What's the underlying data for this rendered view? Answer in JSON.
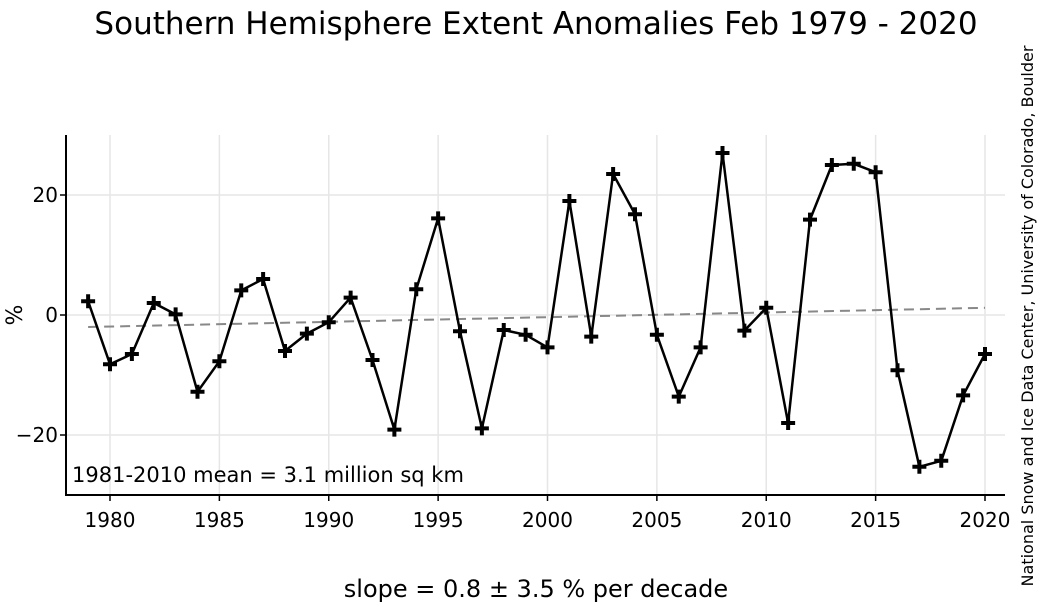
{
  "chart_data": {
    "type": "line",
    "title": "Southern Hemisphere Extent Anomalies Feb 1979 - 2020",
    "xlabel": "slope = 0.8 ± 3.5 % per decade",
    "ylabel": "%",
    "credit": "National Snow and Ice Data Center, University of Colorado, Boulder",
    "annotation": "1981-2010 mean = 3.1 million sq km",
    "xlim": [
      1978,
      2021
    ],
    "ylim": [
      -30,
      30
    ],
    "x_ticks": [
      1980,
      1985,
      1990,
      1995,
      2000,
      2005,
      2010,
      2015,
      2020
    ],
    "x_tick_labels": [
      "1980",
      "1985",
      "1990",
      "1995",
      "2000",
      "2005",
      "2010",
      "2015",
      "2020"
    ],
    "y_ticks": [
      -20,
      0,
      20
    ],
    "y_tick_labels": [
      "−20",
      "0",
      "20"
    ],
    "grid": true,
    "series": [
      {
        "color": "#000000",
        "marker": "plus",
        "x": [
          1979,
          1980,
          1981,
          1982,
          1983,
          1984,
          1985,
          1986,
          1987,
          1988,
          1989,
          1990,
          1991,
          1992,
          1993,
          1994,
          1995,
          1996,
          1997,
          1998,
          1999,
          2000,
          2001,
          2002,
          2003,
          2004,
          2005,
          2006,
          2007,
          2008,
          2009,
          2010,
          2011,
          2012,
          2013,
          2014,
          2015,
          2016,
          2017,
          2018,
          2019,
          2020
        ],
        "y": [
          2.3,
          -8.2,
          -6.5,
          2.0,
          0.1,
          -12.8,
          -7.7,
          4.1,
          6.0,
          -6.0,
          -3.1,
          -1.2,
          2.9,
          -7.5,
          -19.1,
          4.3,
          16.1,
          -2.7,
          -18.9,
          -2.5,
          -3.3,
          -5.4,
          19.0,
          -3.6,
          23.5,
          16.8,
          -3.3,
          -13.6,
          -5.4,
          27.0,
          -2.6,
          1.2,
          -18.0,
          15.9,
          25.0,
          25.2,
          23.8,
          -9.2,
          -25.3,
          -24.3,
          -13.4,
          -6.5
        ]
      }
    ],
    "trend": {
      "color": "#888888",
      "style": "dashed",
      "x": [
        1979,
        2020
      ],
      "y": [
        -2.0,
        1.2
      ]
    }
  }
}
